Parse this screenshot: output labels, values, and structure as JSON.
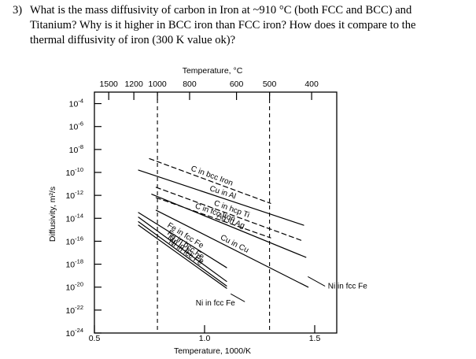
{
  "question": {
    "number": "3)",
    "lines": [
      "What is the mass diffusivity of carbon in Iron at ~910 °C (both FCC and BCC) and",
      "Titanium? Why is it higher in BCC iron than FCC iron? How does it compare to the",
      "thermal diffusivity of iron (300 K value ok)?"
    ]
  },
  "chart_data": {
    "type": "line",
    "title": "",
    "xlabel": "Temperature, 1000/K",
    "ylabel": "Diffusivity, m²/s",
    "top_axis_label": "Temperature, °C",
    "xlim": [
      0.5,
      1.6
    ],
    "ylim": [
      -24,
      -3
    ],
    "y_scale": "log",
    "grid": false,
    "x_tick_labels": [
      {
        "value": 0.5,
        "label": "0.5"
      },
      {
        "value": 1.0,
        "label": "1.0"
      },
      {
        "value": 1.5,
        "label": "1.5"
      }
    ],
    "y_tick_labels": [
      {
        "value": -4,
        "base": "10",
        "exp": "-4"
      },
      {
        "value": -6,
        "base": "10",
        "exp": "-6"
      },
      {
        "value": -8,
        "base": "10",
        "exp": "-8"
      },
      {
        "value": -10,
        "base": "10",
        "exp": "-10"
      },
      {
        "value": -12,
        "base": "10",
        "exp": "-12"
      },
      {
        "value": -14,
        "base": "10",
        "exp": "-14"
      },
      {
        "value": -16,
        "base": "10",
        "exp": "-16"
      },
      {
        "value": -18,
        "base": "10",
        "exp": "-18"
      },
      {
        "value": -20,
        "base": "10",
        "exp": "-20"
      },
      {
        "value": -22,
        "base": "10",
        "exp": "-22"
      },
      {
        "value": -24,
        "base": "10",
        "exp": "-24"
      }
    ],
    "top_tick_labels": [
      {
        "value": 0.565,
        "label": "1500"
      },
      {
        "value": 0.679,
        "label": "1200"
      },
      {
        "value": 0.786,
        "label": "1000"
      },
      {
        "value": 0.932,
        "label": "800"
      },
      {
        "value": 1.145,
        "label": "600"
      },
      {
        "value": 1.295,
        "label": "500"
      },
      {
        "value": 1.486,
        "label": "400"
      }
    ],
    "reference_lines": [
      {
        "x": 0.786,
        "style": "dashed"
      },
      {
        "x": 1.295,
        "style": "dashed"
      }
    ],
    "series": [
      {
        "name": "C in bcc Iron",
        "style": "dashed",
        "points": [
          [
            0.75,
            -8.8
          ],
          [
            1.3,
            -12.7
          ]
        ]
      },
      {
        "name": "Cu in Al",
        "style": "solid",
        "points": [
          [
            0.7,
            -9.8
          ],
          [
            1.45,
            -14.6
          ]
        ]
      },
      {
        "name": "C in hcp Ti",
        "style": "dashed",
        "points": [
          [
            0.78,
            -11.3
          ],
          [
            1.45,
            -16.0
          ]
        ]
      },
      {
        "name": "Ag in Ag",
        "style": "solid",
        "points": [
          [
            0.76,
            -11.9
          ],
          [
            1.46,
            -17.4
          ]
        ]
      },
      {
        "name": "C in fcc Iron",
        "style": "dashed",
        "points": [
          [
            0.78,
            -12.2
          ],
          [
            1.3,
            -15.7
          ]
        ]
      },
      {
        "name": "Cu in Cu",
        "style": "solid",
        "points": [
          [
            0.78,
            -13.3
          ],
          [
            1.47,
            -20.0
          ]
        ]
      },
      {
        "name": "Fe in fcc Fe",
        "style": "solid",
        "points": [
          [
            0.7,
            -13.5
          ],
          [
            1.1,
            -18.3
          ]
        ]
      },
      {
        "name": "Fe in bcc Fe",
        "style": "solid",
        "points": [
          [
            0.7,
            -13.9
          ],
          [
            1.1,
            -19.5
          ]
        ]
      },
      {
        "name": "Mn in fcc Fe",
        "style": "solid",
        "points": [
          [
            0.7,
            -14.3
          ],
          [
            1.1,
            -19.9
          ]
        ]
      },
      {
        "name": "Ni in fcc Fe",
        "style": "solid",
        "points": [
          [
            0.7,
            -14.6
          ],
          [
            1.1,
            -20.1
          ]
        ]
      }
    ],
    "annotations": [
      {
        "text": "Ni in fcc Fe",
        "x": 1.56,
        "y": -19.9,
        "arrow_to": [
          1.47,
          -19.1
        ]
      },
      {
        "text": "Ni in fcc Fe",
        "x": 0.96,
        "y": -21.4,
        "arrow_to": [
          1.12,
          -20.6
        ]
      }
    ]
  }
}
